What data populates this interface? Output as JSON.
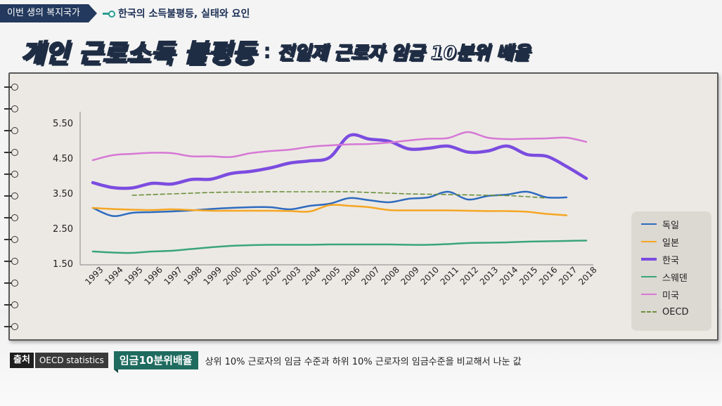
{
  "breadcrumb": {
    "series": "이번 생의 복지국가",
    "topic": "한국의 소득불평등, 실태와 요인"
  },
  "headline": {
    "main": "개인 근로소득 불평등",
    "colon": ":",
    "sub": "전일제 근로자 임금 10분위 배율"
  },
  "footer": {
    "source_label": "출처",
    "source_value": "OECD statistics",
    "term_label": "임금10분위배율",
    "term_desc": "상위 10% 근로자의 임금 수준과 하위 10% 근로자의 임금수준을 비교해서 나눈 값"
  },
  "chart_data": {
    "type": "line",
    "title": "",
    "xlabel": "",
    "ylabel": "",
    "ylim": [
      1.5,
      5.5
    ],
    "yticks": [
      "5.50",
      "4.50",
      "3.50",
      "2.50",
      "1.50"
    ],
    "ytick_values": [
      5.5,
      4.5,
      3.5,
      2.5,
      1.5
    ],
    "x": [
      "1993",
      "1994",
      "1995",
      "1996",
      "1997",
      "1998",
      "1999",
      "2000",
      "2001",
      "2002",
      "2003",
      "2004",
      "2005",
      "2006",
      "2007",
      "2008",
      "2009",
      "2010",
      "2011",
      "2012",
      "2013",
      "2014",
      "2015",
      "2016",
      "2017",
      "2018"
    ],
    "legend_position": "right",
    "series": [
      {
        "name": "독일",
        "color": "#2e6bbf",
        "width": 2.5,
        "dashed": false,
        "values": [
          3.08,
          2.85,
          2.94,
          2.96,
          2.98,
          3.01,
          3.05,
          3.08,
          3.1,
          3.1,
          3.04,
          3.14,
          3.2,
          3.36,
          3.3,
          3.24,
          3.34,
          3.38,
          3.54,
          3.32,
          3.42,
          3.46,
          3.54,
          3.38,
          3.38,
          null
        ]
      },
      {
        "name": "일본",
        "color": "#f5a623",
        "width": 2.5,
        "dashed": false,
        "values": [
          3.08,
          3.05,
          3.03,
          3.02,
          3.04,
          3.02,
          3.0,
          3.0,
          3.0,
          3.0,
          2.99,
          2.98,
          3.16,
          3.14,
          3.1,
          3.02,
          3.01,
          3.01,
          3.01,
          3.0,
          2.99,
          2.99,
          2.97,
          2.91,
          2.87,
          null
        ]
      },
      {
        "name": "한국",
        "color": "#7b4ce0",
        "width": 4.5,
        "dashed": false,
        "values": [
          3.8,
          3.66,
          3.65,
          3.78,
          3.76,
          3.89,
          3.9,
          4.06,
          4.12,
          4.22,
          4.36,
          4.42,
          4.52,
          5.14,
          5.04,
          4.98,
          4.76,
          4.78,
          4.84,
          4.67,
          4.7,
          4.84,
          4.6,
          4.55,
          4.26,
          3.92
        ]
      },
      {
        "name": "스웨덴",
        "color": "#3aa57a",
        "width": 2.5,
        "dashed": false,
        "values": [
          1.84,
          1.81,
          1.8,
          1.84,
          1.86,
          1.91,
          1.96,
          2.0,
          2.02,
          2.03,
          2.03,
          2.03,
          2.04,
          2.04,
          2.04,
          2.04,
          2.03,
          2.03,
          2.05,
          2.08,
          2.09,
          2.1,
          2.12,
          2.13,
          2.14,
          2.15
        ]
      },
      {
        "name": "미국",
        "color": "#d678d6",
        "width": 2.5,
        "dashed": false,
        "values": [
          4.44,
          4.58,
          4.62,
          4.65,
          4.64,
          4.55,
          4.55,
          4.53,
          4.64,
          4.7,
          4.74,
          4.82,
          4.86,
          4.89,
          4.9,
          4.94,
          5.0,
          5.05,
          5.07,
          5.24,
          5.08,
          5.04,
          5.05,
          5.06,
          5.08,
          4.96
        ]
      },
      {
        "name": "OECD",
        "color": "#6a8f3a",
        "width": 1.6,
        "dashed": true,
        "values": [
          null,
          null,
          3.44,
          3.46,
          3.48,
          3.5,
          3.52,
          3.53,
          3.53,
          3.54,
          3.54,
          3.54,
          3.54,
          3.54,
          3.52,
          3.5,
          3.48,
          3.47,
          3.46,
          3.45,
          3.44,
          3.43,
          3.4,
          3.36,
          null,
          null
        ]
      }
    ]
  }
}
